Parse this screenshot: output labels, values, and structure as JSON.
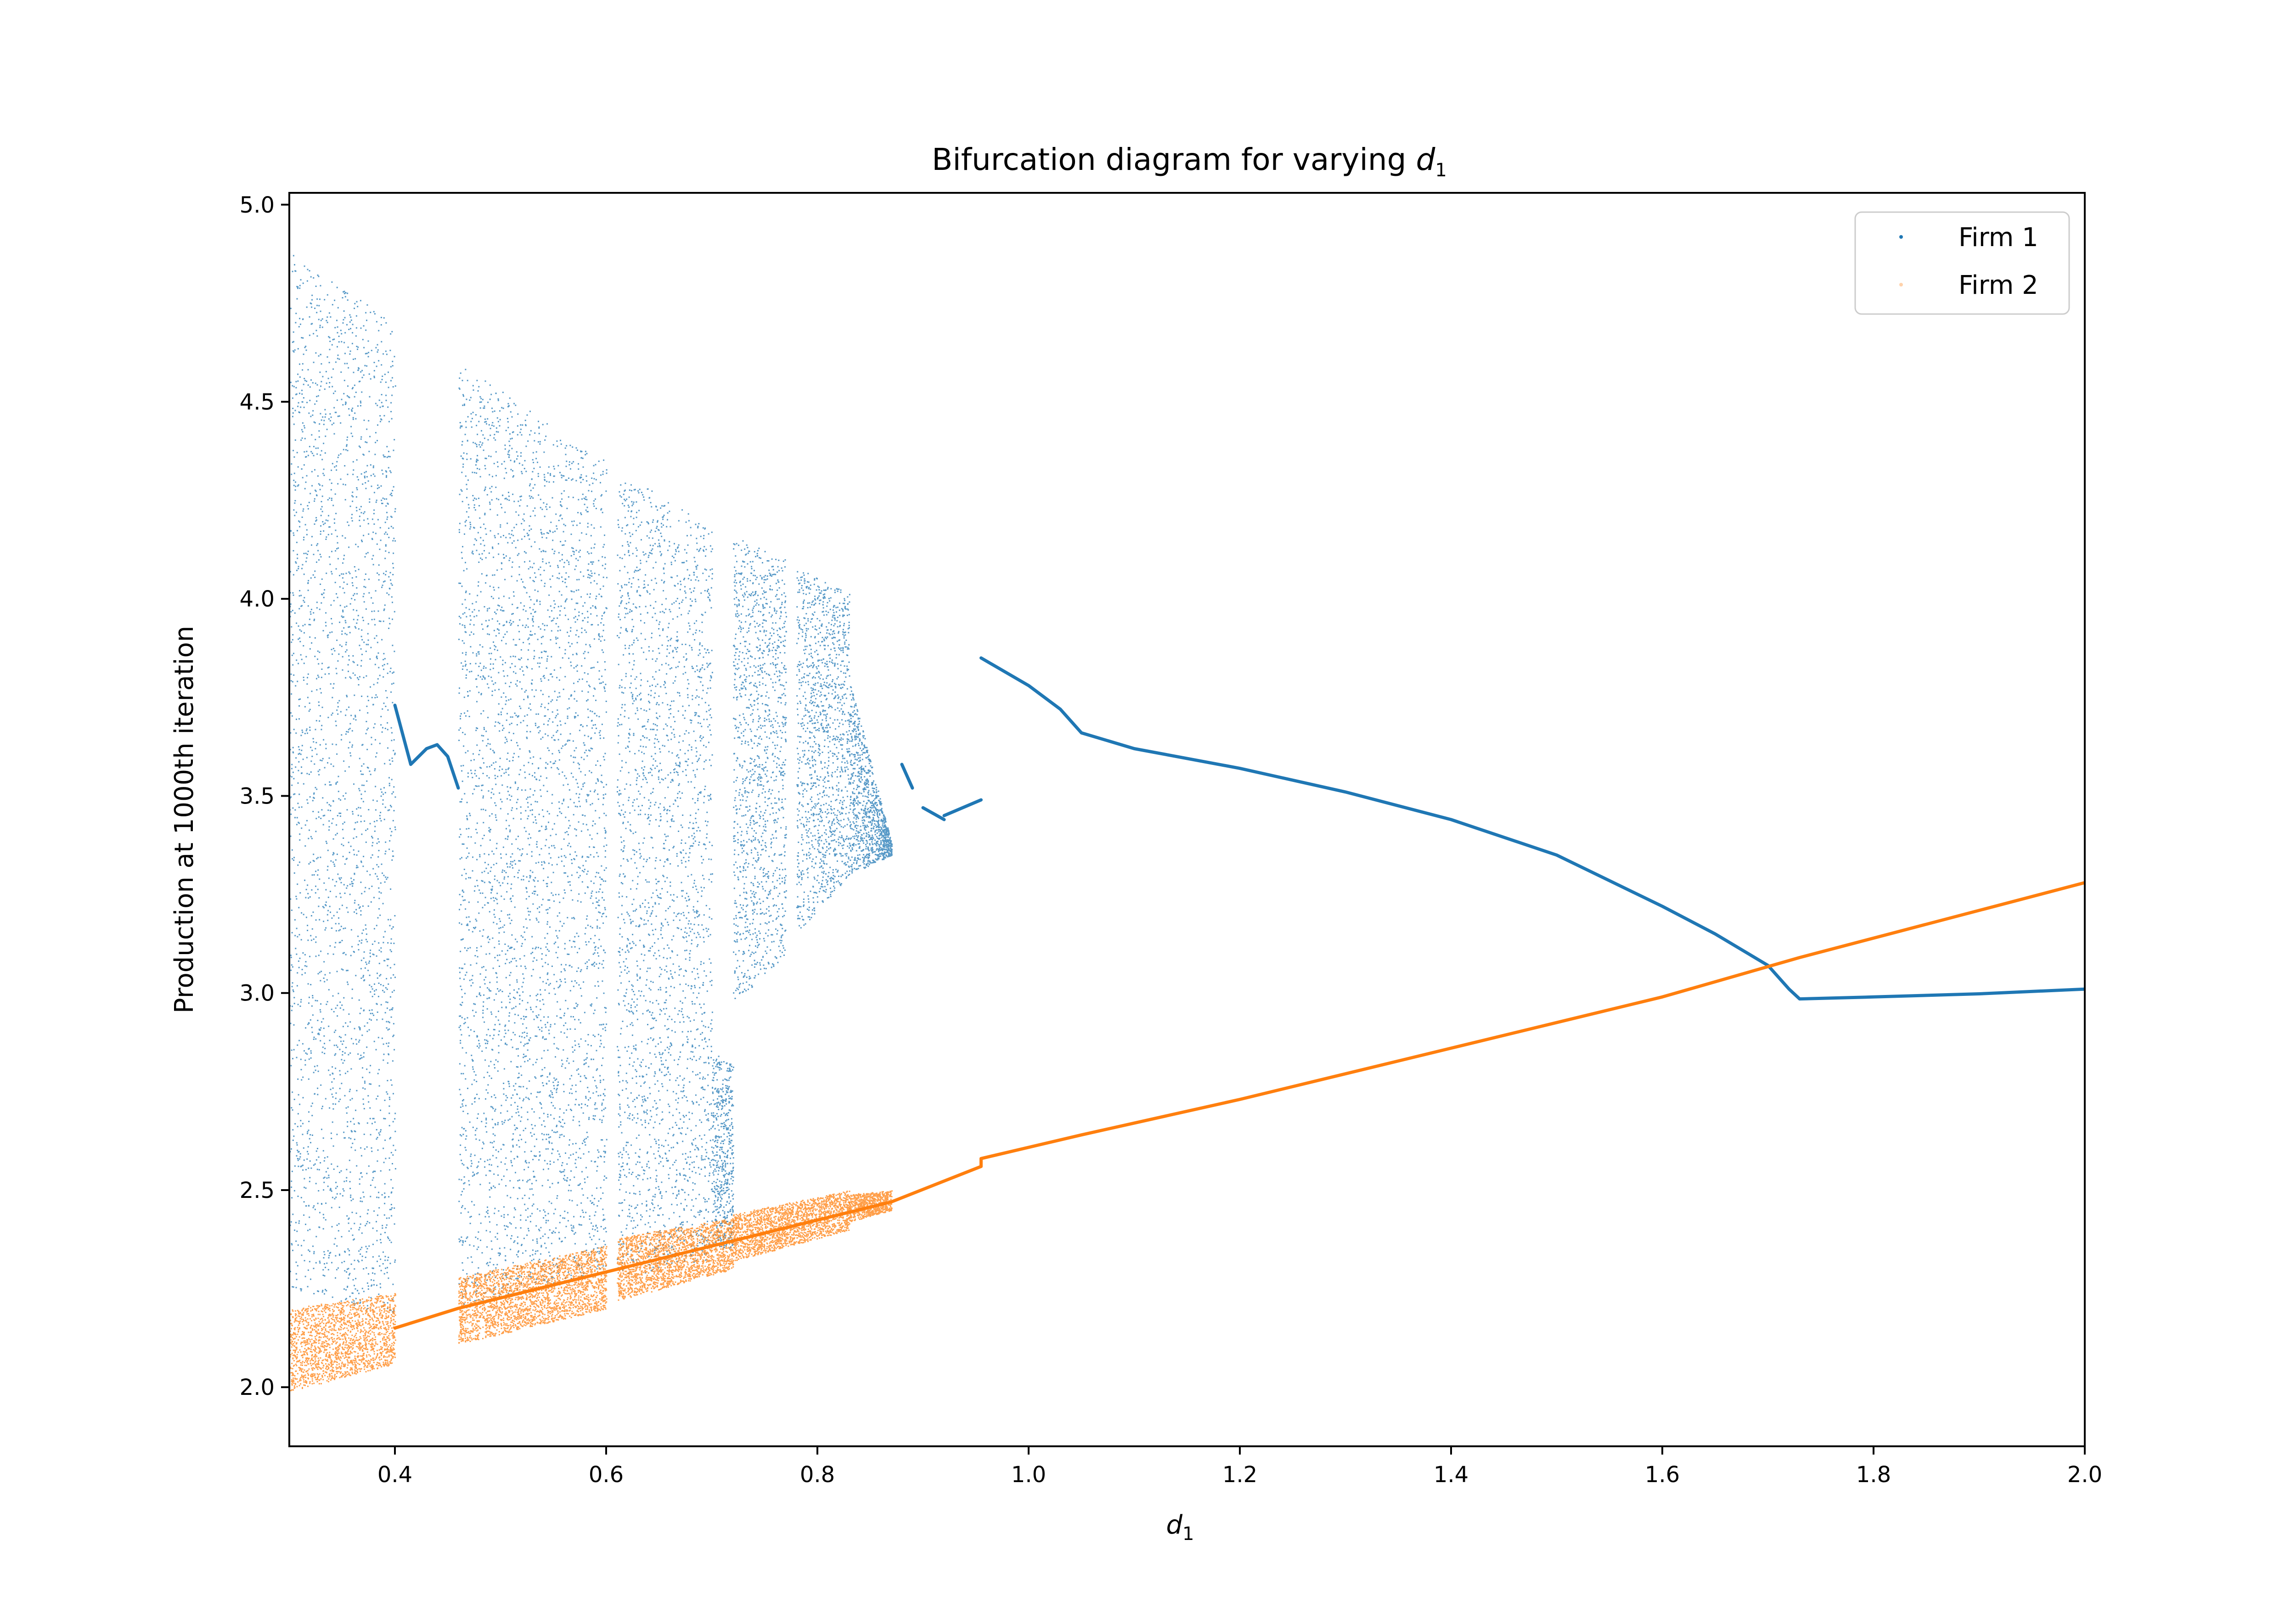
{
  "chart_data": {
    "type": "scatter",
    "title": "Bifurcation diagram for varying ",
    "title_math": "d",
    "title_math_sub": "1",
    "xlabel": "d",
    "xlabel_sub": "1",
    "ylabel": "Production at 1000th iteration",
    "xlim": [
      0.3,
      2.0
    ],
    "ylim": [
      1.85,
      5.03
    ],
    "xticks": [
      "0.4",
      "0.6",
      "0.8",
      "1.0",
      "1.2",
      "1.4",
      "1.6",
      "1.8",
      "2.0"
    ],
    "yticks": [
      "2.0",
      "2.5",
      "3.0",
      "3.5",
      "4.0",
      "4.5",
      "5.0"
    ],
    "grid": false,
    "legend_position": "top-right",
    "colors": {
      "firm1": "#1f77b4",
      "firm2": "#ff7f0e"
    },
    "series": [
      {
        "name": "Firm 1",
        "color": "#1f77b4",
        "chaotic_bands": [
          {
            "x": [
              0.3,
              0.4
            ],
            "y_top": [
              4.88,
              4.7
            ],
            "y_bottom": [
              2.25,
              2.18
            ]
          },
          {
            "x": [
              0.46,
              0.6
            ],
            "y_top": [
              4.6,
              4.35
            ],
            "y_bottom": [
              2.2,
              2.3
            ]
          },
          {
            "x": [
              0.61,
              0.7
            ],
            "y_top": [
              4.33,
              4.18
            ],
            "y_bottom": [
              2.28,
              2.32
            ]
          },
          {
            "x": [
              0.7,
              0.72
            ],
            "y_top": [
              2.85,
              2.82
            ],
            "y_bottom": [
              2.35,
              2.35
            ]
          },
          {
            "x": [
              0.72,
              0.77
            ],
            "y_top": [
              4.16,
              4.1
            ],
            "y_bottom": [
              2.97,
              3.1
            ]
          },
          {
            "x": [
              0.78,
              0.83
            ],
            "y_top": [
              4.08,
              4.02
            ],
            "y_bottom": [
              3.15,
              3.3
            ]
          },
          {
            "x": [
              0.83,
              0.87
            ],
            "y_top": [
              3.8,
              3.38
            ],
            "y_bottom": [
              3.3,
              3.35
            ]
          }
        ],
        "periodic_curve": [
          [
            0.4,
            3.73
          ],
          [
            0.415,
            3.58
          ],
          [
            0.43,
            3.62
          ],
          [
            0.44,
            3.63
          ],
          [
            0.45,
            3.6
          ],
          [
            0.46,
            3.52
          ]
        ],
        "fragments": [
          [
            [
              0.88,
              3.58
            ],
            [
              0.89,
              3.52
            ]
          ],
          [
            [
              0.9,
              3.47
            ],
            [
              0.92,
              3.44
            ]
          ],
          [
            [
              0.92,
              3.45
            ],
            [
              0.955,
              3.49
            ]
          ]
        ],
        "fixed_point": [
          [
            0.955,
            3.85
          ],
          [
            1.0,
            3.78
          ],
          [
            1.03,
            3.72
          ],
          [
            1.05,
            3.66
          ],
          [
            1.1,
            3.62
          ],
          [
            1.2,
            3.57
          ],
          [
            1.3,
            3.51
          ],
          [
            1.4,
            3.44
          ],
          [
            1.5,
            3.35
          ],
          [
            1.6,
            3.22
          ],
          [
            1.65,
            3.15
          ],
          [
            1.7,
            3.07
          ],
          [
            1.72,
            3.01
          ],
          [
            1.73,
            2.985
          ],
          [
            1.8,
            2.99
          ],
          [
            1.9,
            2.998
          ],
          [
            2.0,
            3.01
          ]
        ]
      },
      {
        "name": "Firm 2",
        "color": "#ff7f0e",
        "chaotic_bands": [
          {
            "x": [
              0.3,
              0.4
            ],
            "y_top": [
              2.2,
              2.24
            ],
            "y_bottom": [
              1.99,
              2.06
            ]
          },
          {
            "x": [
              0.46,
              0.6
            ],
            "y_top": [
              2.28,
              2.36
            ],
            "y_bottom": [
              2.11,
              2.2
            ]
          },
          {
            "x": [
              0.61,
              0.72
            ],
            "y_top": [
              2.38,
              2.43
            ],
            "y_bottom": [
              2.22,
              2.3
            ]
          },
          {
            "x": [
              0.72,
              0.83
            ],
            "y_top": [
              2.44,
              2.5
            ],
            "y_bottom": [
              2.32,
              2.4
            ]
          },
          {
            "x": [
              0.83,
              0.87
            ],
            "y_top": [
              2.49,
              2.5
            ],
            "y_bottom": [
              2.42,
              2.45
            ]
          }
        ],
        "line": [
          [
            0.4,
            2.15
          ],
          [
            0.46,
            2.2
          ],
          [
            0.87,
            2.47
          ],
          [
            0.955,
            2.56
          ],
          [
            0.955,
            2.58
          ],
          [
            1.05,
            2.64
          ],
          [
            1.2,
            2.73
          ],
          [
            1.4,
            2.86
          ],
          [
            1.6,
            2.99
          ],
          [
            1.73,
            3.09
          ],
          [
            2.0,
            3.28
          ]
        ]
      }
    ]
  }
}
